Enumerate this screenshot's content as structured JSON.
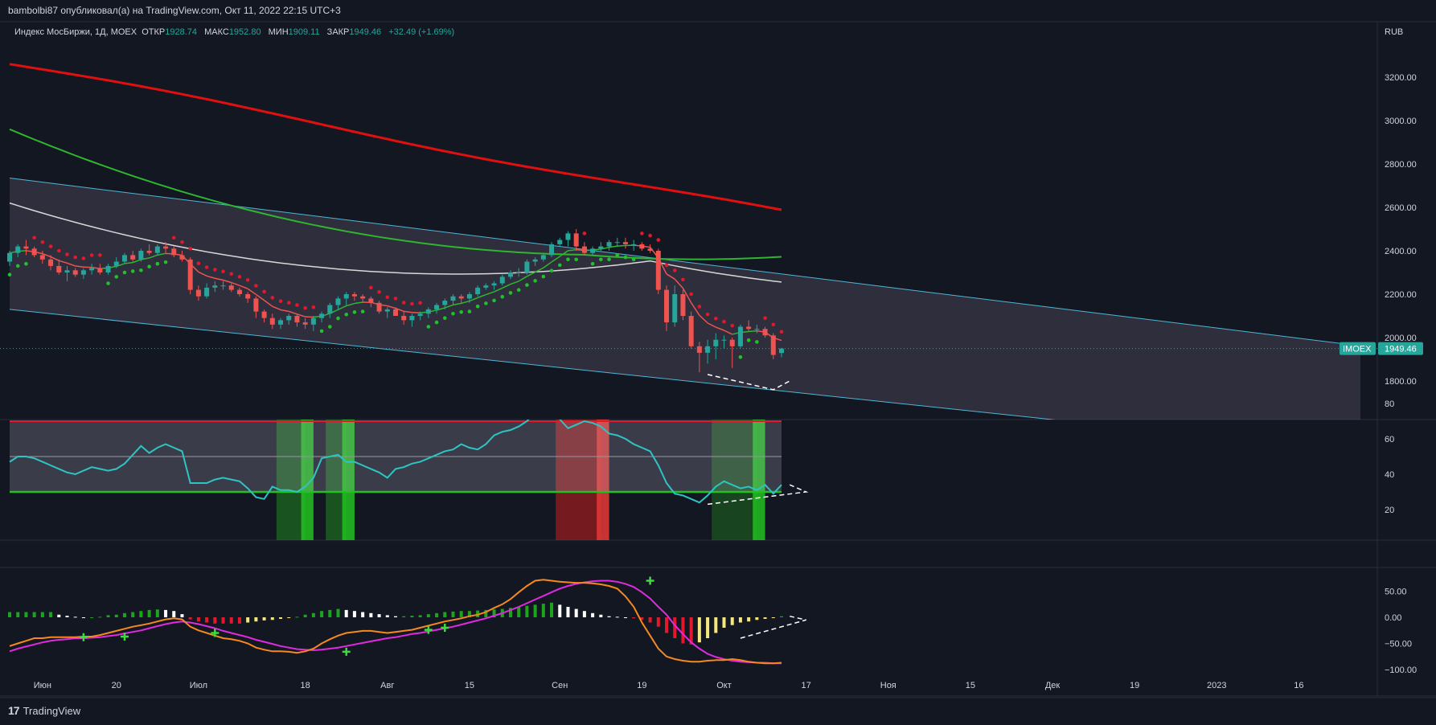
{
  "header": {
    "published": "bambolbi87 опубликовал(а) на TradingView.com, Окт 11, 2022 22:15 UTC+3"
  },
  "legend": {
    "symbol": "Индекс МосБиржи, 1Д, MOEX",
    "open_label": "ОТКР",
    "open": "1928.74",
    "high_label": "МАКС",
    "high": "1952.80",
    "low_label": "МИН",
    "low": "1909.11",
    "close_label": "ЗАКР",
    "close": "1949.46",
    "change": "+32.49 (+1.69%)"
  },
  "price_axis": {
    "currency": "RUB",
    "ticks": [
      "3200.00",
      "3000.00",
      "2800.00",
      "2600.00",
      "2400.00",
      "2200.00",
      "2000.00",
      "1800.00"
    ],
    "last_symbol": "IMOEX",
    "last_price": "1949.46"
  },
  "rsi_axis": {
    "ticks": [
      "80",
      "60",
      "40",
      "20"
    ]
  },
  "macd_axis": {
    "ticks": [
      "50.00",
      "0.00",
      "−50.00",
      "−100.00"
    ]
  },
  "time_axis": {
    "labels": [
      "Июн",
      "20",
      "Июл",
      "18",
      "Авг",
      "15",
      "Сен",
      "19",
      "Окт",
      "17",
      "Ноя",
      "15",
      "Дек",
      "19",
      "2023",
      "16"
    ]
  },
  "footer": {
    "brand": "TradingView",
    "logo": "17"
  },
  "colors": {
    "background": "#131722",
    "up": "#26a69a",
    "down": "#ef5350",
    "sma200": "#e01010",
    "sma100": "#2fb52f",
    "sma50": "#d8d8d8",
    "channel": "#4fb6d6",
    "rsi": "#2ec4c4",
    "macd": "#f5891f",
    "signal": "#e02adf"
  },
  "chart_data": [
    {
      "type": "candlestick",
      "title": "Индекс МосБиржи, 1Д, MOEX",
      "ylabel": "RUB",
      "ylim": [
        1750,
        3330
      ],
      "x": [
        "2022-06-01",
        "2022-06-02",
        "2022-06-03",
        "2022-06-06",
        "2022-06-07",
        "2022-06-08",
        "2022-06-09",
        "2022-06-10",
        "2022-06-13",
        "2022-06-14",
        "2022-06-15",
        "2022-06-16",
        "2022-06-17",
        "2022-06-20",
        "2022-06-21",
        "2022-06-22",
        "2022-06-23",
        "2022-06-24",
        "2022-06-27",
        "2022-06-28",
        "2022-06-29",
        "2022-06-30",
        "2022-07-01",
        "2022-07-04",
        "2022-07-05",
        "2022-07-06",
        "2022-07-07",
        "2022-07-08",
        "2022-07-11",
        "2022-07-12",
        "2022-07-13",
        "2022-07-14",
        "2022-07-15",
        "2022-07-18",
        "2022-07-19",
        "2022-07-20",
        "2022-07-21",
        "2022-07-22",
        "2022-07-25",
        "2022-07-26",
        "2022-07-27",
        "2022-07-28",
        "2022-07-29",
        "2022-08-01",
        "2022-08-02",
        "2022-08-03",
        "2022-08-04",
        "2022-08-05",
        "2022-08-08",
        "2022-08-09",
        "2022-08-10",
        "2022-08-11",
        "2022-08-12",
        "2022-08-15",
        "2022-08-16",
        "2022-08-17",
        "2022-08-18",
        "2022-08-19",
        "2022-08-22",
        "2022-08-23",
        "2022-08-24",
        "2022-08-25",
        "2022-08-26",
        "2022-08-29",
        "2022-08-30",
        "2022-08-31",
        "2022-09-01",
        "2022-09-02",
        "2022-09-05",
        "2022-09-06",
        "2022-09-07",
        "2022-09-08",
        "2022-09-09",
        "2022-09-12",
        "2022-09-13",
        "2022-09-14",
        "2022-09-15",
        "2022-09-16",
        "2022-09-19",
        "2022-09-20",
        "2022-09-21",
        "2022-09-22",
        "2022-09-23",
        "2022-09-26",
        "2022-09-27",
        "2022-09-28",
        "2022-09-29",
        "2022-09-30",
        "2022-10-03",
        "2022-10-04",
        "2022-10-05",
        "2022-10-06",
        "2022-10-07",
        "2022-10-10",
        "2022-10-11"
      ],
      "open": [
        2350,
        2390,
        2420,
        2410,
        2380,
        2360,
        2330,
        2300,
        2310,
        2290,
        2310,
        2320,
        2300,
        2330,
        2350,
        2380,
        2360,
        2400,
        2390,
        2420,
        2410,
        2380,
        2360,
        2220,
        2190,
        2230,
        2240,
        2240,
        2220,
        2200,
        2180,
        2120,
        2090,
        2060,
        2080,
        2100,
        2070,
        2060,
        2090,
        2110,
        2150,
        2180,
        2200,
        2190,
        2180,
        2160,
        2120,
        2130,
        2100,
        2080,
        2100,
        2110,
        2130,
        2150,
        2170,
        2190,
        2180,
        2200,
        2230,
        2240,
        2250,
        2280,
        2300,
        2300,
        2350,
        2360,
        2380,
        2430,
        2450,
        2480,
        2420,
        2390,
        2410,
        2420,
        2440,
        2440,
        2430,
        2430,
        2410,
        2400,
        2220,
        2070,
        2200,
        2100,
        1960,
        1930,
        1960,
        1990,
        1990,
        1960,
        2050,
        2040,
        2040,
        2010,
        1929
      ],
      "high": [
        2400,
        2430,
        2450,
        2420,
        2400,
        2380,
        2360,
        2330,
        2320,
        2320,
        2340,
        2340,
        2340,
        2370,
        2390,
        2400,
        2410,
        2430,
        2430,
        2440,
        2420,
        2400,
        2370,
        2240,
        2250,
        2260,
        2260,
        2250,
        2230,
        2210,
        2190,
        2130,
        2110,
        2090,
        2110,
        2110,
        2090,
        2100,
        2120,
        2160,
        2190,
        2210,
        2210,
        2200,
        2190,
        2170,
        2140,
        2140,
        2120,
        2110,
        2120,
        2140,
        2160,
        2180,
        2200,
        2200,
        2210,
        2240,
        2250,
        2260,
        2290,
        2310,
        2320,
        2360,
        2370,
        2390,
        2440,
        2460,
        2490,
        2500,
        2440,
        2420,
        2440,
        2450,
        2460,
        2460,
        2450,
        2440,
        2430,
        2410,
        2240,
        2240,
        2220,
        2120,
        1980,
        1990,
        2020,
        2010,
        2000,
        2060,
        2080,
        2060,
        2050,
        2020,
        1953
      ],
      "low": [
        2330,
        2370,
        2380,
        2370,
        2340,
        2310,
        2290,
        2260,
        2280,
        2270,
        2290,
        2290,
        2290,
        2320,
        2340,
        2350,
        2350,
        2380,
        2380,
        2390,
        2370,
        2350,
        2200,
        2170,
        2180,
        2210,
        2220,
        2210,
        2190,
        2160,
        2090,
        2070,
        2040,
        2040,
        2060,
        2050,
        2040,
        2030,
        2070,
        2090,
        2130,
        2150,
        2170,
        2160,
        2140,
        2110,
        2090,
        2100,
        2060,
        2050,
        2080,
        2090,
        2110,
        2130,
        2150,
        2160,
        2160,
        2190,
        2220,
        2220,
        2240,
        2270,
        2280,
        2290,
        2330,
        2350,
        2370,
        2420,
        2420,
        2400,
        2380,
        2380,
        2400,
        2400,
        2420,
        2410,
        2400,
        2400,
        2390,
        2200,
        2030,
        2050,
        2080,
        1950,
        1840,
        1880,
        1900,
        1950,
        1860,
        1950,
        2030,
        2020,
        2000,
        1900,
        1909
      ],
      "close": [
        2390,
        2420,
        2410,
        2380,
        2360,
        2330,
        2300,
        2310,
        2290,
        2310,
        2320,
        2300,
        2330,
        2350,
        2380,
        2360,
        2400,
        2390,
        2420,
        2410,
        2380,
        2360,
        2220,
        2190,
        2230,
        2240,
        2240,
        2220,
        2200,
        2180,
        2120,
        2090,
        2060,
        2080,
        2100,
        2070,
        2060,
        2090,
        2110,
        2150,
        2180,
        2200,
        2190,
        2180,
        2160,
        2120,
        2130,
        2100,
        2080,
        2100,
        2110,
        2130,
        2150,
        2170,
        2190,
        2180,
        2200,
        2230,
        2240,
        2250,
        2280,
        2300,
        2300,
        2350,
        2360,
        2380,
        2430,
        2450,
        2480,
        2420,
        2390,
        2410,
        2420,
        2440,
        2440,
        2430,
        2430,
        2410,
        2400,
        2220,
        2070,
        2200,
        2100,
        1960,
        1930,
        1960,
        1990,
        1990,
        1960,
        2050,
        2040,
        2040,
        2010,
        1920,
        1949.46
      ]
    },
    {
      "type": "line",
      "title": "RSI",
      "ylim": [
        12,
        80
      ],
      "levels": [
        70,
        50,
        30
      ],
      "values": [
        47,
        50,
        50,
        49,
        47,
        45,
        43,
        41,
        40,
        42,
        44,
        43,
        42,
        43,
        46,
        51,
        56,
        52,
        55,
        57,
        55,
        53,
        35,
        35,
        35,
        37,
        38,
        37,
        36,
        32,
        27,
        26,
        33,
        31,
        31,
        30,
        33,
        38,
        49,
        50,
        51,
        47,
        47,
        45,
        43,
        41,
        38,
        43,
        44,
        46,
        47,
        49,
        51,
        53,
        54,
        57,
        55,
        54,
        57,
        62,
        64,
        65,
        67,
        70,
        75,
        78,
        79,
        71,
        66,
        68,
        70,
        69,
        67,
        63,
        62,
        60,
        57,
        55,
        53,
        45,
        35,
        29,
        28,
        26,
        24,
        28,
        33,
        36,
        34,
        32,
        33,
        31,
        34,
        29,
        34
      ]
    },
    {
      "type": "bar",
      "title": "MACD",
      "ylim": [
        -110,
        78
      ],
      "histogram": [
        10,
        10,
        10,
        10,
        10,
        10,
        5,
        3,
        1,
        0,
        0,
        1,
        4,
        5,
        8,
        10,
        12,
        14,
        15,
        14,
        12,
        6,
        -4,
        -8,
        -10,
        -12,
        -12,
        -12,
        -12,
        -10,
        -8,
        -6,
        -5,
        -3,
        -1,
        1,
        5,
        8,
        12,
        14,
        16,
        14,
        12,
        10,
        8,
        6,
        4,
        2,
        2,
        3,
        4,
        6,
        8,
        10,
        11,
        12,
        12,
        13,
        14,
        15,
        16,
        18,
        20,
        22,
        24,
        26,
        28,
        24,
        20,
        16,
        12,
        8,
        5,
        2,
        1,
        0,
        -2,
        -5,
        -10,
        -18,
        -30,
        -40,
        -50,
        -52,
        -48,
        -40,
        -30,
        -20,
        -15,
        -10,
        -8,
        -5,
        -3,
        -1,
        2
      ],
      "macd": [
        -55,
        -50,
        -45,
        -40,
        -40,
        -38,
        -38,
        -38,
        -38,
        -37,
        -37,
        -34,
        -30,
        -26,
        -22,
        -18,
        -15,
        -12,
        -8,
        -4,
        -2,
        -4,
        -18,
        -25,
        -30,
        -35,
        -40,
        -42,
        -45,
        -50,
        -58,
        -62,
        -65,
        -65,
        -66,
        -68,
        -65,
        -60,
        -50,
        -42,
        -35,
        -30,
        -28,
        -26,
        -26,
        -28,
        -30,
        -28,
        -26,
        -24,
        -20,
        -16,
        -12,
        -8,
        -5,
        -2,
        2,
        5,
        10,
        18,
        25,
        35,
        48,
        60,
        70,
        72,
        70,
        68,
        67,
        66,
        66,
        65,
        63,
        60,
        55,
        40,
        20,
        -10,
        -35,
        -60,
        -75,
        -80,
        -83,
        -85,
        -85,
        -83,
        -82,
        -82,
        -80,
        -82,
        -85,
        -87,
        -88,
        -88,
        -87
      ],
      "signal": [
        -65,
        -60,
        -56,
        -52,
        -48,
        -45,
        -43,
        -42,
        -40,
        -40,
        -39,
        -38,
        -36,
        -34,
        -31,
        -28,
        -25,
        -21,
        -17,
        -13,
        -10,
        -8,
        -10,
        -13,
        -17,
        -21,
        -26,
        -30,
        -34,
        -38,
        -43,
        -47,
        -51,
        -55,
        -58,
        -61,
        -62,
        -63,
        -62,
        -60,
        -58,
        -55,
        -52,
        -49,
        -46,
        -43,
        -40,
        -38,
        -35,
        -32,
        -30,
        -27,
        -24,
        -21,
        -18,
        -14,
        -10,
        -6,
        -2,
        3,
        8,
        14,
        20,
        27,
        34,
        41,
        48,
        55,
        60,
        64,
        67,
        69,
        70,
        70,
        68,
        64,
        58,
        48,
        36,
        20,
        5,
        -15,
        -32,
        -48,
        -60,
        -70,
        -76,
        -80,
        -83,
        -85,
        -86,
        -87,
        -87,
        -88,
        -88
      ]
    }
  ]
}
